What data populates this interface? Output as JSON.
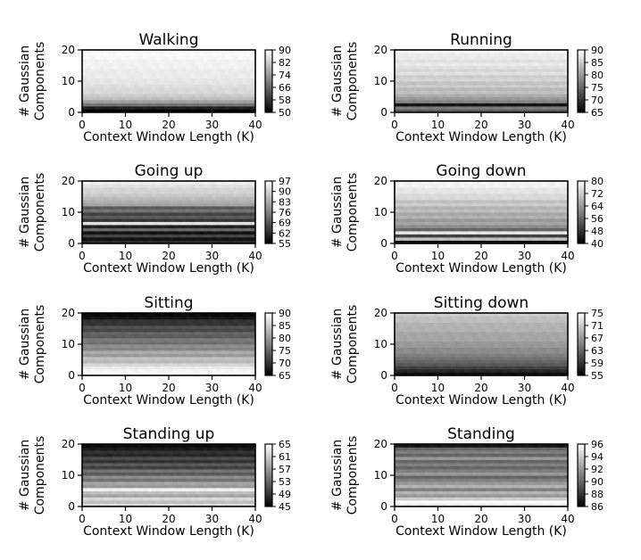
{
  "chart_data": [
    {
      "type": "heatmap",
      "title": "Walking",
      "xlabel": "Context Window Length (K)",
      "ylabel": [
        "# Gaussian",
        "Components"
      ],
      "xlim": [
        0,
        40
      ],
      "ylim": [
        0,
        20
      ],
      "x_ticks": [
        0,
        10,
        20,
        30,
        40
      ],
      "y_ticks": [
        0,
        10,
        20
      ],
      "colorbar_ticks": [
        90,
        82,
        74,
        66,
        58,
        50
      ],
      "vmin": 50,
      "vmax": 90,
      "rows_from_bottom": [
        50,
        55,
        68,
        75,
        80,
        82,
        84,
        84,
        85,
        86,
        86,
        87,
        87,
        87,
        88,
        88,
        88,
        89,
        89,
        89
      ]
    },
    {
      "type": "heatmap",
      "title": "Running",
      "xlabel": "Context Window Length (K)",
      "ylabel": [
        "# Gaussian",
        "Components"
      ],
      "xlim": [
        0,
        40
      ],
      "ylim": [
        0,
        20
      ],
      "x_ticks": [
        0,
        10,
        20,
        30,
        40
      ],
      "y_ticks": [
        0,
        10,
        20
      ],
      "colorbar_ticks": [
        90,
        85,
        80,
        75,
        70,
        65
      ],
      "vmin": 65,
      "vmax": 90,
      "rows_from_bottom": [
        74,
        77,
        67,
        78,
        80,
        82,
        84,
        83,
        85,
        84,
        86,
        85,
        87,
        86,
        87,
        88,
        87,
        88,
        88,
        89
      ]
    },
    {
      "type": "heatmap",
      "title": "Going up",
      "xlabel": "Context Window Length (K)",
      "ylabel": [
        "# Gaussian",
        "Components"
      ],
      "xlim": [
        0,
        40
      ],
      "ylim": [
        0,
        20
      ],
      "x_ticks": [
        0,
        10,
        20,
        30,
        40
      ],
      "y_ticks": [
        0,
        10,
        20
      ],
      "colorbar_ticks": [
        97,
        90,
        83,
        76,
        69,
        62,
        55
      ],
      "vmin": 55,
      "vmax": 97,
      "rows_from_bottom": [
        62,
        58,
        66,
        58,
        72,
        60,
        92,
        64,
        70,
        66,
        74,
        70,
        82,
        84,
        86,
        88,
        90,
        90,
        92,
        94
      ]
    },
    {
      "type": "heatmap",
      "title": "Going down",
      "xlabel": "Context Window Length (K)",
      "ylabel": [
        "# Gaussian",
        "Components"
      ],
      "xlim": [
        0,
        40
      ],
      "ylim": [
        0,
        20
      ],
      "x_ticks": [
        0,
        10,
        20,
        30,
        40
      ],
      "y_ticks": [
        0,
        10,
        20
      ],
      "colorbar_ticks": [
        80,
        72,
        64,
        56,
        48,
        40
      ],
      "vmin": 40,
      "vmax": 80,
      "rows_from_bottom": [
        42,
        70,
        50,
        76,
        56,
        62,
        66,
        64,
        68,
        66,
        70,
        68,
        72,
        70,
        74,
        74,
        76,
        76,
        78,
        78
      ]
    },
    {
      "type": "heatmap",
      "title": "Sitting",
      "xlabel": "Context Window Length (K)",
      "ylabel": [
        "# Gaussian",
        "Components"
      ],
      "xlim": [
        0,
        40
      ],
      "ylim": [
        0,
        20
      ],
      "x_ticks": [
        0,
        10,
        20,
        30,
        40
      ],
      "y_ticks": [
        0,
        10,
        20
      ],
      "colorbar_ticks": [
        90,
        85,
        80,
        75,
        70,
        65
      ],
      "vmin": 65,
      "vmax": 90,
      "rows_from_bottom": [
        90,
        89,
        88,
        86,
        83,
        84,
        80,
        82,
        78,
        79,
        76,
        77,
        74,
        75,
        72,
        73,
        70,
        70,
        67,
        66
      ]
    },
    {
      "type": "heatmap",
      "title": "Sitting down",
      "xlabel": "Context Window Length (K)",
      "ylabel": [
        "# Gaussian",
        "Components"
      ],
      "xlim": [
        0,
        40
      ],
      "ylim": [
        0,
        20
      ],
      "x_ticks": [
        0,
        10,
        20,
        30,
        40
      ],
      "y_ticks": [
        0,
        10,
        20
      ],
      "colorbar_ticks": [
        75,
        71,
        67,
        63,
        59,
        55
      ],
      "vmin": 55,
      "vmax": 75,
      "rows_from_bottom": [
        56,
        58,
        60,
        62,
        63,
        64,
        65,
        66,
        66,
        67,
        67,
        68,
        68,
        68,
        69,
        69,
        69,
        70,
        70,
        71
      ]
    },
    {
      "type": "heatmap",
      "title": "Standing up",
      "xlabel": "Context Window Length (K)",
      "ylabel": [
        "# Gaussian",
        "Components"
      ],
      "xlim": [
        0,
        40
      ],
      "ylim": [
        0,
        20
      ],
      "x_ticks": [
        0,
        10,
        20,
        30,
        40
      ],
      "y_ticks": [
        0,
        10,
        20
      ],
      "colorbar_ticks": [
        65,
        61,
        57,
        53,
        49,
        45
      ],
      "vmin": 45,
      "vmax": 65,
      "rows_from_bottom": [
        62,
        60,
        62,
        58,
        60,
        64,
        57,
        58,
        54,
        56,
        52,
        54,
        50,
        52,
        49,
        51,
        48,
        49,
        47,
        46
      ]
    },
    {
      "type": "heatmap",
      "title": "Standing",
      "xlabel": "Context Window Length (K)",
      "ylabel": [
        "# Gaussian",
        "Components"
      ],
      "xlim": [
        0,
        40
      ],
      "ylim": [
        0,
        20
      ],
      "x_ticks": [
        0,
        10,
        20,
        30,
        40
      ],
      "y_ticks": [
        0,
        10,
        20
      ],
      "colorbar_ticks": [
        96,
        94,
        92,
        90,
        88,
        86
      ],
      "vmin": 86,
      "vmax": 96,
      "rows_from_bottom": [
        95,
        96,
        94,
        92,
        93,
        91,
        93,
        92,
        91,
        90,
        92,
        91,
        90,
        91,
        90,
        92,
        90,
        91,
        90,
        87
      ]
    }
  ]
}
